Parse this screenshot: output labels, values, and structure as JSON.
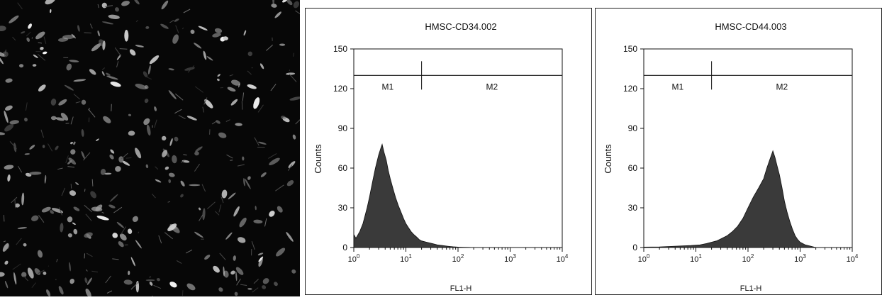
{
  "chart_data": [
    {
      "type": "area",
      "title": "HMSC-CD34.002",
      "xlabel": "FL1-H",
      "ylabel": "Counts",
      "xscale": "log",
      "xlim": [
        1,
        10000
      ],
      "ylim": [
        0,
        150
      ],
      "xticks": [
        {
          "value": 1,
          "base": "10",
          "exp": "0"
        },
        {
          "value": 10,
          "base": "10",
          "exp": "1"
        },
        {
          "value": 100,
          "base": "10",
          "exp": "2"
        },
        {
          "value": 1000,
          "base": "10",
          "exp": "3"
        },
        {
          "value": 10000,
          "base": "10",
          "exp": "4"
        }
      ],
      "yticks": [
        "0",
        "30",
        "60",
        "90",
        "120",
        "150"
      ],
      "markers": [
        {
          "label": "M1",
          "range": [
            1,
            20
          ]
        },
        {
          "label": "M2",
          "range": [
            20,
            10000
          ]
        }
      ],
      "marker_y": 130,
      "series": [
        {
          "color": "#3a3a3a",
          "x": [
            1,
            1.1,
            1.3,
            1.5,
            1.8,
            2.0,
            2.3,
            2.6,
            3.0,
            3.3,
            3.5,
            3.8,
            4.2,
            4.6,
            5.0,
            5.6,
            6.3,
            7.1,
            8.0,
            9.0,
            10,
            11.2,
            12.6,
            14,
            16,
            18,
            20,
            25,
            32,
            40,
            50,
            63,
            80,
            100,
            126,
            160,
            200
          ],
          "y": [
            10,
            7,
            12,
            18,
            30,
            38,
            50,
            60,
            70,
            75,
            78,
            72,
            66,
            58,
            52,
            45,
            38,
            32,
            27,
            22,
            18,
            15,
            12,
            10,
            8,
            6,
            5,
            4,
            3,
            2,
            1.5,
            1,
            0.6,
            0.3,
            0.2,
            0.1,
            0
          ]
        }
      ]
    },
    {
      "type": "area",
      "title": "HMSC-CD44.003",
      "xlabel": "FL1-H",
      "ylabel": "Counts",
      "xscale": "log",
      "xlim": [
        1,
        10000
      ],
      "ylim": [
        0,
        150
      ],
      "xticks": [
        {
          "value": 1,
          "base": "10",
          "exp": "0"
        },
        {
          "value": 10,
          "base": "10",
          "exp": "1"
        },
        {
          "value": 100,
          "base": "10",
          "exp": "2"
        },
        {
          "value": 1000,
          "base": "10",
          "exp": "3"
        },
        {
          "value": 10000,
          "base": "10",
          "exp": "4"
        }
      ],
      "yticks": [
        "0",
        "30",
        "60",
        "90",
        "120",
        "150"
      ],
      "markers": [
        {
          "label": "M1",
          "range": [
            1,
            20
          ]
        },
        {
          "label": "M2",
          "range": [
            20,
            10000
          ]
        }
      ],
      "marker_y": 130,
      "series": [
        {
          "color": "#3a3a3a",
          "x": [
            1,
            2,
            4,
            8,
            12,
            16,
            20,
            25,
            32,
            40,
            50,
            63,
            80,
            100,
            126,
            160,
            200,
            230,
            260,
            300,
            330,
            360,
            400,
            450,
            500,
            560,
            630,
            710,
            800,
            900,
            1000,
            1260,
            1600,
            2000
          ],
          "y": [
            0.3,
            0.5,
            1,
            1.5,
            2,
            3,
            4,
            5,
            7,
            9,
            12,
            16,
            22,
            30,
            38,
            45,
            52,
            60,
            66,
            73,
            68,
            62,
            55,
            45,
            35,
            27,
            20,
            14,
            9,
            6,
            4,
            2,
            1,
            0
          ]
        }
      ]
    }
  ]
}
